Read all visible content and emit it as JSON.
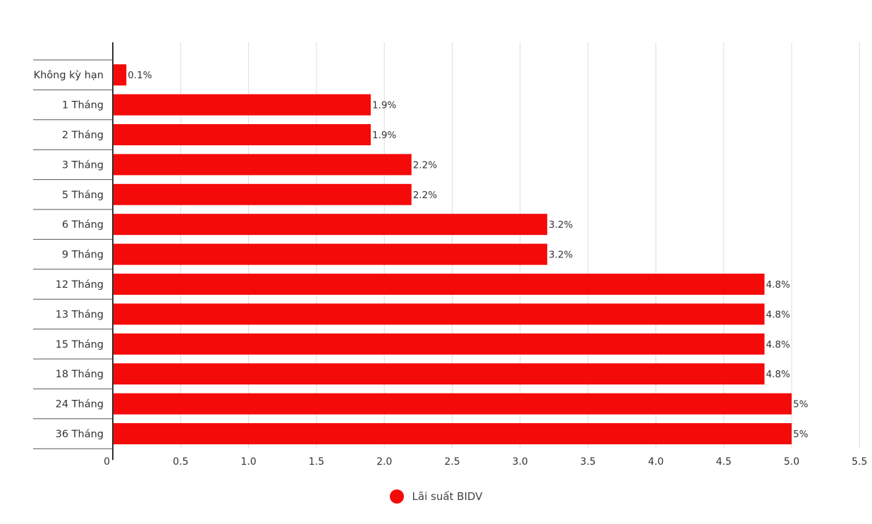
{
  "chart_data": {
    "type": "bar",
    "orientation": "horizontal",
    "categories": [
      "Không kỳ hạn",
      "1 Tháng",
      "2 Tháng",
      "3 Tháng",
      "5 Tháng",
      "6 Tháng",
      "9 Tháng",
      "12 Tháng",
      "13 Tháng",
      "15 Tháng",
      "18 Tháng",
      "24 Tháng",
      "36 Tháng"
    ],
    "series": [
      {
        "name": "Lãi suất BIDV",
        "values": [
          0.1,
          1.9,
          1.9,
          2.2,
          2.2,
          3.2,
          3.2,
          4.8,
          4.8,
          4.8,
          4.8,
          5,
          5
        ],
        "labels": [
          "0.1%",
          "1.9%",
          "1.9%",
          "2.2%",
          "2.2%",
          "3.2%",
          "3.2%",
          "4.8%",
          "4.8%",
          "4.8%",
          "4.8%",
          "5%",
          "5%"
        ],
        "color": "#f50a0a"
      }
    ],
    "xlim": [
      0,
      5.5
    ],
    "xticks": [
      "0",
      "0.5",
      "1.0",
      "1.5",
      "2.0",
      "2.5",
      "3.0",
      "3.5",
      "4.0",
      "4.5",
      "5.0",
      "5.5"
    ],
    "grid": true,
    "legend_position": "bottom-center"
  },
  "legend": {
    "label": "Lãi suất BIDV"
  },
  "colors": {
    "bar": "#f50a0a",
    "grid": "#dddddd",
    "axis": "#333333",
    "row_line": "#555555"
  }
}
